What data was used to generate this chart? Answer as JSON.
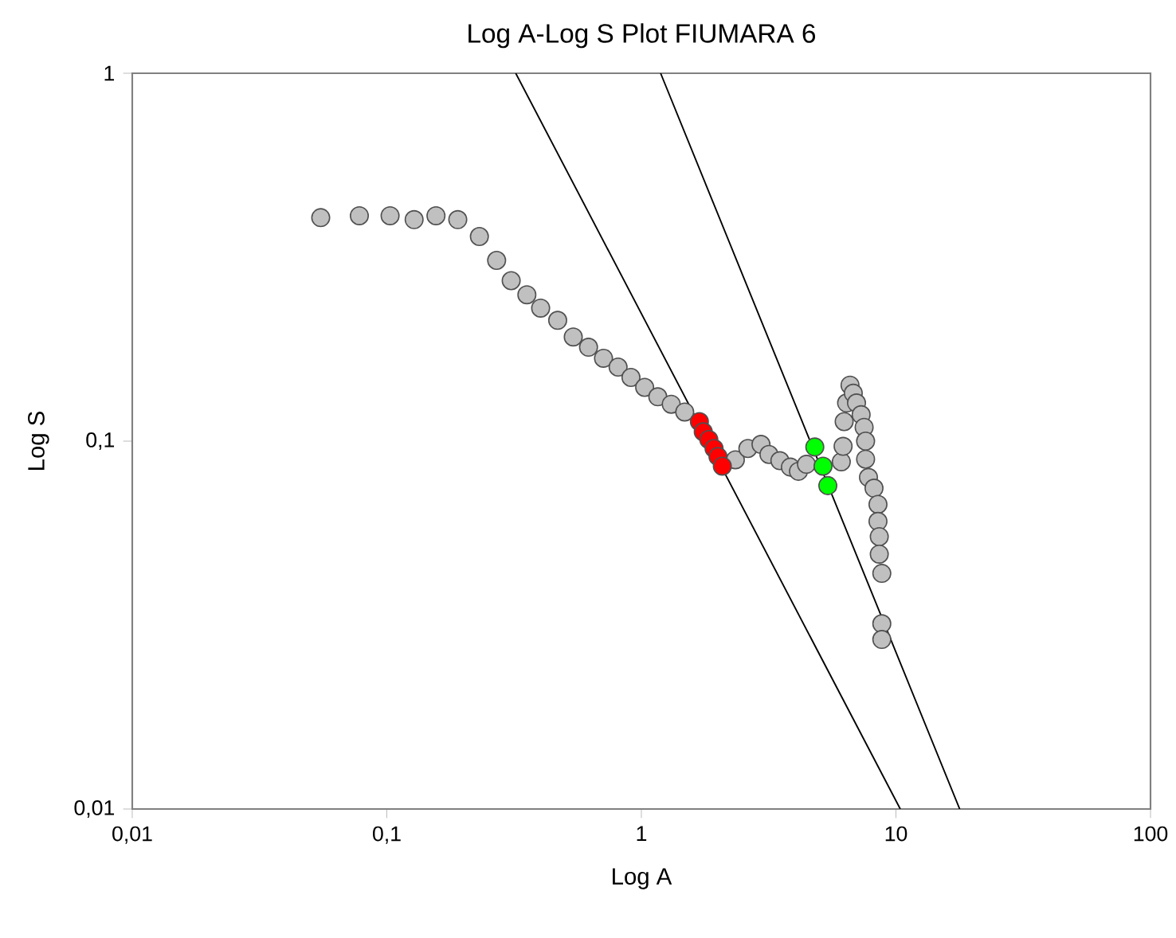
{
  "chart_data": {
    "type": "scatter",
    "title": "Log A-Log S Plot FIUMARA 6",
    "xlabel": "Log A",
    "ylabel": "Log S",
    "log": "xy",
    "xlim": [
      0.01,
      100
    ],
    "ylim": [
      0.01,
      1
    ],
    "xticks": [
      {
        "value": 0.01,
        "label": "0,01"
      },
      {
        "value": 0.1,
        "label": "0,1"
      },
      1,
      10,
      100
    ],
    "yticks": [
      {
        "value": 0.01,
        "label": "0,01"
      },
      {
        "value": 0.1,
        "label": "0,1"
      },
      1
    ],
    "series": [
      {
        "marker": "circle",
        "color": "#c0c0c0",
        "x": [
          0.055,
          0.078,
          0.103,
          0.128,
          0.156,
          0.19,
          0.231,
          0.27,
          0.308,
          0.355,
          0.402,
          0.469,
          0.54,
          0.62,
          0.71,
          0.81,
          0.91,
          1.03,
          1.16,
          1.31,
          1.48,
          2.34,
          2.62,
          2.95,
          3.17,
          3.5,
          3.85,
          4.14,
          4.45,
          6.1,
          6.2,
          6.26,
          6.4,
          6.6,
          6.8,
          7.0,
          7.3,
          7.5,
          7.6,
          7.6,
          7.8,
          8.2,
          8.5,
          8.5,
          8.6,
          8.6,
          8.8,
          8.8,
          8.8
        ],
        "values": [
          0.405,
          0.41,
          0.41,
          0.4,
          0.41,
          0.4,
          0.36,
          0.31,
          0.273,
          0.25,
          0.23,
          0.213,
          0.192,
          0.18,
          0.168,
          0.159,
          0.149,
          0.14,
          0.132,
          0.126,
          0.12,
          0.089,
          0.0955,
          0.098,
          0.092,
          0.0885,
          0.085,
          0.0828,
          0.0865,
          0.0879,
          0.0968,
          0.113,
          0.127,
          0.142,
          0.135,
          0.127,
          0.118,
          0.109,
          0.1,
          0.0893,
          0.0797,
          0.0745,
          0.0673,
          0.0605,
          0.055,
          0.0493,
          0.0437,
          0.0319,
          0.0289
        ]
      },
      {
        "marker": "circle",
        "color": "#ff0000",
        "x": [
          1.69,
          1.75,
          1.84,
          1.93,
          2.0,
          2.08
        ],
        "values": [
          0.113,
          0.106,
          0.101,
          0.0955,
          0.0908,
          0.0855
        ]
      },
      {
        "marker": "circle",
        "color": "#00ff00",
        "x": [
          4.8,
          5.17,
          5.4
        ],
        "values": [
          0.0964,
          0.0855,
          0.0757
        ]
      },
      {
        "type": "line",
        "marker": "none",
        "color": "#000000",
        "x": [
          0.321,
          10.4
        ],
        "values": [
          1,
          0.01
        ]
      },
      {
        "type": "line",
        "marker": "none",
        "color": "#000000",
        "x": [
          1.19,
          17.8
        ],
        "values": [
          1,
          0.01
        ]
      }
    ]
  }
}
